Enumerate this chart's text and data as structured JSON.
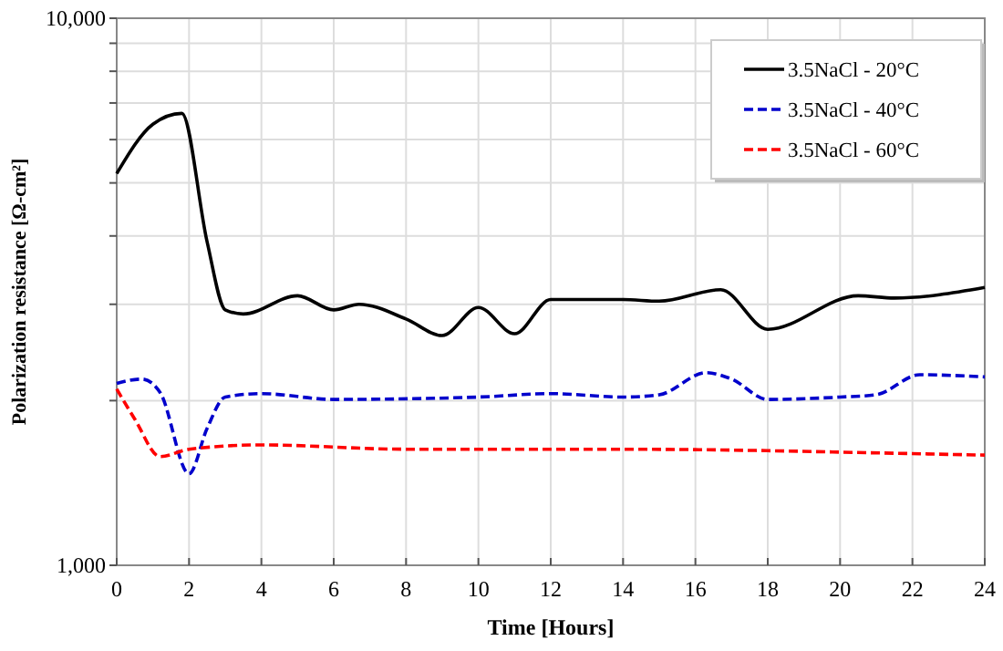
{
  "chart_data": {
    "type": "line",
    "xlabel": "Time [Hours]",
    "ylabel": "Polarization resistance [Ω-cm²]",
    "log": "y",
    "grid": true,
    "legend": "top right",
    "xlim": [
      0,
      24
    ],
    "xticks": [
      0,
      2,
      4,
      6,
      8,
      10,
      12,
      14,
      16,
      18,
      20,
      22,
      24
    ],
    "ylim": [
      1000,
      10000
    ],
    "yticks": [
      {
        "value": 1000,
        "label": "1,000"
      },
      {
        "value": 2000,
        "label": null
      },
      {
        "value": 3000,
        "label": null
      },
      {
        "value": 4000,
        "label": null
      },
      {
        "value": 5000,
        "label": null
      },
      {
        "value": 6000,
        "label": null
      },
      {
        "value": 7000,
        "label": null
      },
      {
        "value": 8000,
        "label": null
      },
      {
        "value": 9000,
        "label": null
      },
      {
        "value": 10000,
        "label": "10,000"
      }
    ],
    "series": [
      {
        "name": "3.5NaCl - 20°C",
        "color": "#000000",
        "line_style": "solid",
        "x": [
          0,
          1,
          1.8,
          2.5,
          3,
          3.5,
          5,
          6,
          6.7,
          8,
          9,
          10,
          11,
          12,
          14,
          15,
          16.7,
          18,
          20.5,
          21.5,
          24
        ],
        "values": [
          5200,
          6400,
          6700,
          3900,
          2930,
          2880,
          3110,
          2930,
          3000,
          2820,
          2630,
          2960,
          2650,
          3060,
          3060,
          3040,
          3190,
          2700,
          3110,
          3080,
          3220
        ]
      },
      {
        "name": "3.5NaCl - 40°C",
        "color": "#0000cc",
        "line_style": "dashed",
        "x": [
          0,
          0.7,
          1.2,
          2,
          2.5,
          3,
          4,
          6,
          10,
          12,
          14,
          15,
          16.3,
          17,
          18,
          20,
          21,
          22.2,
          24
        ],
        "values": [
          2150,
          2190,
          2070,
          1470,
          1780,
          2030,
          2060,
          2010,
          2030,
          2060,
          2030,
          2050,
          2250,
          2190,
          2010,
          2030,
          2050,
          2230,
          2210
        ]
      },
      {
        "name": "3.5NaCl - 60°C",
        "color": "#ff0000",
        "line_style": "dashed",
        "x": [
          0,
          0.5,
          1.2,
          2,
          4,
          8,
          12,
          14,
          18,
          20,
          24
        ],
        "values": [
          2100,
          1850,
          1580,
          1630,
          1660,
          1630,
          1630,
          1630,
          1620,
          1610,
          1590
        ]
      }
    ]
  }
}
